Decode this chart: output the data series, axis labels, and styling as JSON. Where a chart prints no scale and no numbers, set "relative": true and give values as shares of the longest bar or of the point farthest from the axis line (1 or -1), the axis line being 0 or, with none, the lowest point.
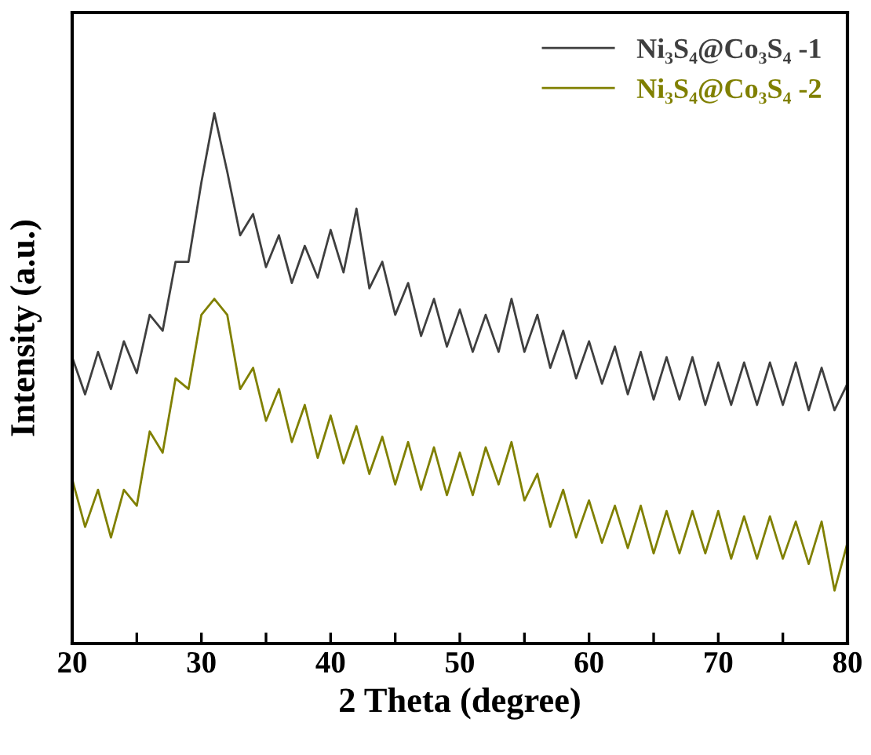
{
  "chart_data": {
    "type": "line",
    "relative": true,
    "xlabel": "2 Theta (degree)",
    "ylabel": "Intensity (a.u.)",
    "xlim": [
      20,
      80
    ],
    "xticks": [
      20,
      {
        "value": 25,
        "label": null
      },
      30,
      {
        "value": 35,
        "label": null
      },
      40,
      {
        "value": 45,
        "label": null
      },
      50,
      {
        "value": 55,
        "label": null
      },
      60,
      {
        "value": 65,
        "label": null
      },
      70,
      {
        "value": 75,
        "label": null
      },
      80
    ],
    "tick_labels": "x",
    "legend": "top right",
    "grid": false,
    "marker": "none",
    "line_style": "solid",
    "x": [
      20,
      21,
      22,
      23,
      24,
      25,
      26,
      27,
      28,
      29,
      30,
      31,
      32,
      33,
      34,
      35,
      36,
      37,
      38,
      39,
      40,
      41,
      42,
      43,
      44,
      45,
      46,
      47,
      48,
      49,
      50,
      51,
      52,
      53,
      54,
      55,
      56,
      57,
      58,
      59,
      60,
      61,
      62,
      63,
      64,
      65,
      66,
      67,
      68,
      69,
      70,
      71,
      72,
      73,
      74,
      75,
      76,
      77,
      78,
      79,
      80
    ],
    "series": [
      {
        "name": "Ni₃S₄@Co₃S₄ -1",
        "color": "#3f3f3f",
        "values": [
          0.54,
          0.47,
          0.55,
          0.48,
          0.57,
          0.51,
          0.62,
          0.59,
          0.72,
          0.72,
          0.87,
          1.0,
          0.89,
          0.77,
          0.81,
          0.71,
          0.77,
          0.68,
          0.75,
          0.69,
          0.78,
          0.7,
          0.82,
          0.67,
          0.72,
          0.62,
          0.68,
          0.58,
          0.65,
          0.56,
          0.63,
          0.55,
          0.62,
          0.55,
          0.65,
          0.55,
          0.62,
          0.52,
          0.59,
          0.5,
          0.57,
          0.49,
          0.56,
          0.47,
          0.55,
          0.46,
          0.54,
          0.46,
          0.54,
          0.45,
          0.53,
          0.45,
          0.53,
          0.45,
          0.53,
          0.45,
          0.53,
          0.44,
          0.52,
          0.44,
          0.49
        ]
      },
      {
        "name": "Ni₃S₄@Co₃S₄ -2",
        "color": "#808000",
        "values": [
          0.31,
          0.22,
          0.29,
          0.2,
          0.29,
          0.26,
          0.4,
          0.36,
          0.5,
          0.48,
          0.62,
          0.65,
          0.62,
          0.48,
          0.52,
          0.42,
          0.48,
          0.38,
          0.45,
          0.35,
          0.43,
          0.34,
          0.41,
          0.32,
          0.39,
          0.3,
          0.38,
          0.29,
          0.37,
          0.28,
          0.36,
          0.28,
          0.37,
          0.3,
          0.38,
          0.27,
          0.32,
          0.22,
          0.29,
          0.2,
          0.27,
          0.19,
          0.26,
          0.18,
          0.26,
          0.17,
          0.25,
          0.17,
          0.25,
          0.17,
          0.25,
          0.16,
          0.24,
          0.16,
          0.24,
          0.16,
          0.23,
          0.15,
          0.23,
          0.1,
          0.19
        ]
      }
    ]
  }
}
